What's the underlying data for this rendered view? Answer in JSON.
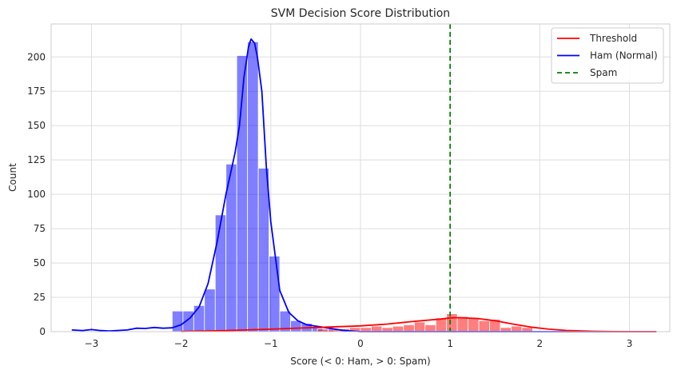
{
  "chart_data": {
    "type": "histogram",
    "title": "SVM Decision Score Distribution",
    "xlabel": "Score (< 0: Ham, > 0: Spam)",
    "ylabel": "Count",
    "xlim": [
      -3.45,
      3.45
    ],
    "ylim": [
      0,
      224
    ],
    "x_ticks": [
      -3,
      -2,
      -1,
      0,
      1,
      2,
      3
    ],
    "x_tick_labels": [
      "−3",
      "−2",
      "−1",
      "0",
      "1",
      "2",
      "3"
    ],
    "y_ticks": [
      0,
      25,
      50,
      75,
      100,
      125,
      150,
      175,
      200
    ],
    "grid": true,
    "legend_position": "top-right",
    "legend": [
      {
        "label": "Threshold",
        "color": "#ff0000",
        "style": "solid"
      },
      {
        "label": "Ham (Normal)",
        "color": "#0000ff",
        "style": "solid"
      },
      {
        "label": "Spam",
        "color": "#008000",
        "style": "dashed"
      }
    ],
    "series": [
      {
        "color": "#0000ff",
        "bin_width": 0.12,
        "bins": [
          {
            "x0": -2.1,
            "count": 15
          },
          {
            "x0": -1.98,
            "count": 15
          },
          {
            "x0": -1.86,
            "count": 19
          },
          {
            "x0": -1.74,
            "count": 31
          },
          {
            "x0": -1.62,
            "count": 85
          },
          {
            "x0": -1.5,
            "count": 122
          },
          {
            "x0": -1.38,
            "count": 201
          },
          {
            "x0": -1.26,
            "count": 211
          },
          {
            "x0": -1.14,
            "count": 119
          },
          {
            "x0": -1.02,
            "count": 55
          },
          {
            "x0": -0.9,
            "count": 15
          },
          {
            "x0": -0.78,
            "count": 8
          },
          {
            "x0": -0.66,
            "count": 6
          },
          {
            "x0": -0.54,
            "count": 3
          },
          {
            "x0": -0.42,
            "count": 1
          }
        ],
        "kde": [
          [
            -3.22,
            1.2
          ],
          [
            -3.1,
            0.8
          ],
          [
            -3.0,
            1.5
          ],
          [
            -2.9,
            0.8
          ],
          [
            -2.8,
            0.5
          ],
          [
            -2.6,
            1.2
          ],
          [
            -2.5,
            2.5
          ],
          [
            -2.4,
            2.3
          ],
          [
            -2.3,
            3.0
          ],
          [
            -2.2,
            2.5
          ],
          [
            -2.1,
            2.8
          ],
          [
            -2.0,
            5.0
          ],
          [
            -1.9,
            10.0
          ],
          [
            -1.8,
            18.0
          ],
          [
            -1.7,
            35.0
          ],
          [
            -1.6,
            65.0
          ],
          [
            -1.5,
            100.0
          ],
          [
            -1.4,
            130.0
          ],
          [
            -1.35,
            150.0
          ],
          [
            -1.3,
            185.0
          ],
          [
            -1.25,
            207.0
          ],
          [
            -1.22,
            213.0
          ],
          [
            -1.18,
            210.0
          ],
          [
            -1.15,
            200.0
          ],
          [
            -1.1,
            175.0
          ],
          [
            -1.05,
            120.0
          ],
          [
            -1.0,
            80.0
          ],
          [
            -0.95,
            55.0
          ],
          [
            -0.9,
            30.0
          ],
          [
            -0.8,
            14.0
          ],
          [
            -0.7,
            8.0
          ],
          [
            -0.6,
            5.0
          ],
          [
            -0.4,
            3.0
          ],
          [
            -0.2,
            1.0
          ],
          [
            0.0,
            0.0
          ],
          [
            3.3,
            0.0
          ]
        ]
      },
      {
        "color": "#ff0000",
        "bin_width": 0.12,
        "bins": [
          {
            "x0": -0.48,
            "count": 2
          },
          {
            "x0": -0.36,
            "count": 2
          },
          {
            "x0": -0.24,
            "count": 2
          },
          {
            "x0": -0.12,
            "count": 3
          },
          {
            "x0": 0.0,
            "count": 3
          },
          {
            "x0": 0.12,
            "count": 4
          },
          {
            "x0": 0.24,
            "count": 3
          },
          {
            "x0": 0.36,
            "count": 4
          },
          {
            "x0": 0.48,
            "count": 5
          },
          {
            "x0": 0.6,
            "count": 7
          },
          {
            "x0": 0.72,
            "count": 5
          },
          {
            "x0": 0.84,
            "count": 10
          },
          {
            "x0": 0.96,
            "count": 13
          },
          {
            "x0": 1.08,
            "count": 11
          },
          {
            "x0": 1.2,
            "count": 10
          },
          {
            "x0": 1.32,
            "count": 8
          },
          {
            "x0": 1.44,
            "count": 9
          },
          {
            "x0": 1.56,
            "count": 3
          },
          {
            "x0": 1.68,
            "count": 4
          },
          {
            "x0": 1.8,
            "count": 3
          }
        ],
        "kde": [
          [
            -2.0,
            0.1
          ],
          [
            -1.5,
            0.8
          ],
          [
            -1.0,
            1.8
          ],
          [
            -0.5,
            3.0
          ],
          [
            0.0,
            4.2
          ],
          [
            0.3,
            5.5
          ],
          [
            0.6,
            7.5
          ],
          [
            0.9,
            9.2
          ],
          [
            1.0,
            10.0
          ],
          [
            1.1,
            10.2
          ],
          [
            1.3,
            9.6
          ],
          [
            1.5,
            8.0
          ],
          [
            1.7,
            5.5
          ],
          [
            1.9,
            3.3
          ],
          [
            2.1,
            1.8
          ],
          [
            2.3,
            0.9
          ],
          [
            2.6,
            0.3
          ],
          [
            3.0,
            0.0
          ],
          [
            3.3,
            0.0
          ]
        ]
      }
    ],
    "reference_lines": [
      {
        "x": 1.0,
        "color": "#008000",
        "style": "dashed"
      }
    ]
  }
}
